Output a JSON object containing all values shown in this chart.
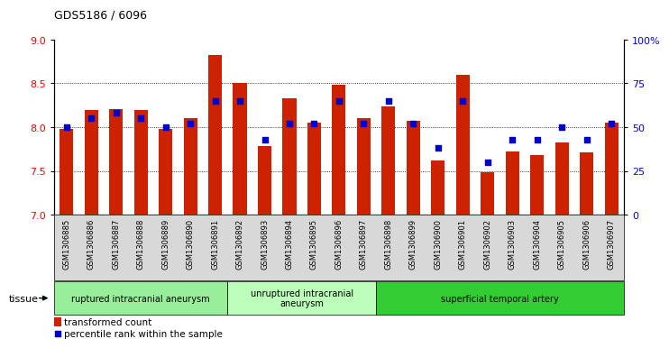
{
  "title": "GDS5186 / 6096",
  "samples": [
    "GSM1306885",
    "GSM1306886",
    "GSM1306887",
    "GSM1306888",
    "GSM1306889",
    "GSM1306890",
    "GSM1306891",
    "GSM1306892",
    "GSM1306893",
    "GSM1306894",
    "GSM1306895",
    "GSM1306896",
    "GSM1306897",
    "GSM1306898",
    "GSM1306899",
    "GSM1306900",
    "GSM1306901",
    "GSM1306902",
    "GSM1306903",
    "GSM1306904",
    "GSM1306905",
    "GSM1306906",
    "GSM1306907"
  ],
  "transformed_counts": [
    7.98,
    8.2,
    8.21,
    8.2,
    7.98,
    8.1,
    8.82,
    8.5,
    7.78,
    8.33,
    8.05,
    8.48,
    8.1,
    8.24,
    8.07,
    7.62,
    8.6,
    7.48,
    7.72,
    7.68,
    7.82,
    7.71,
    8.05
  ],
  "percentile_ranks": [
    50,
    55,
    58,
    55,
    50,
    52,
    65,
    65,
    43,
    52,
    52,
    65,
    52,
    65,
    52,
    38,
    65,
    30,
    43,
    43,
    50,
    43,
    52
  ],
  "group_labels": [
    "ruptured intracranial aneurysm",
    "unruptured intracranial\naneurysm",
    "superficial temporal artery"
  ],
  "group_starts": [
    0,
    7,
    13
  ],
  "group_ends": [
    7,
    13,
    23
  ],
  "group_colors": [
    "#99ee99",
    "#bbffbb",
    "#33cc33"
  ],
  "ylim_left": [
    7,
    9
  ],
  "ylim_right": [
    0,
    100
  ],
  "yticks_left": [
    7,
    7.5,
    8,
    8.5,
    9
  ],
  "yticks_right": [
    0,
    25,
    50,
    75,
    100
  ],
  "ytick_right_labels": [
    "0",
    "25",
    "50",
    "75",
    "100%"
  ],
  "bar_color": "#cc2200",
  "dot_color": "#0000cc",
  "bar_width": 0.55,
  "tissue_label": "tissue",
  "legend_bar_label": "transformed count",
  "legend_dot_label": "percentile rank within the sample"
}
